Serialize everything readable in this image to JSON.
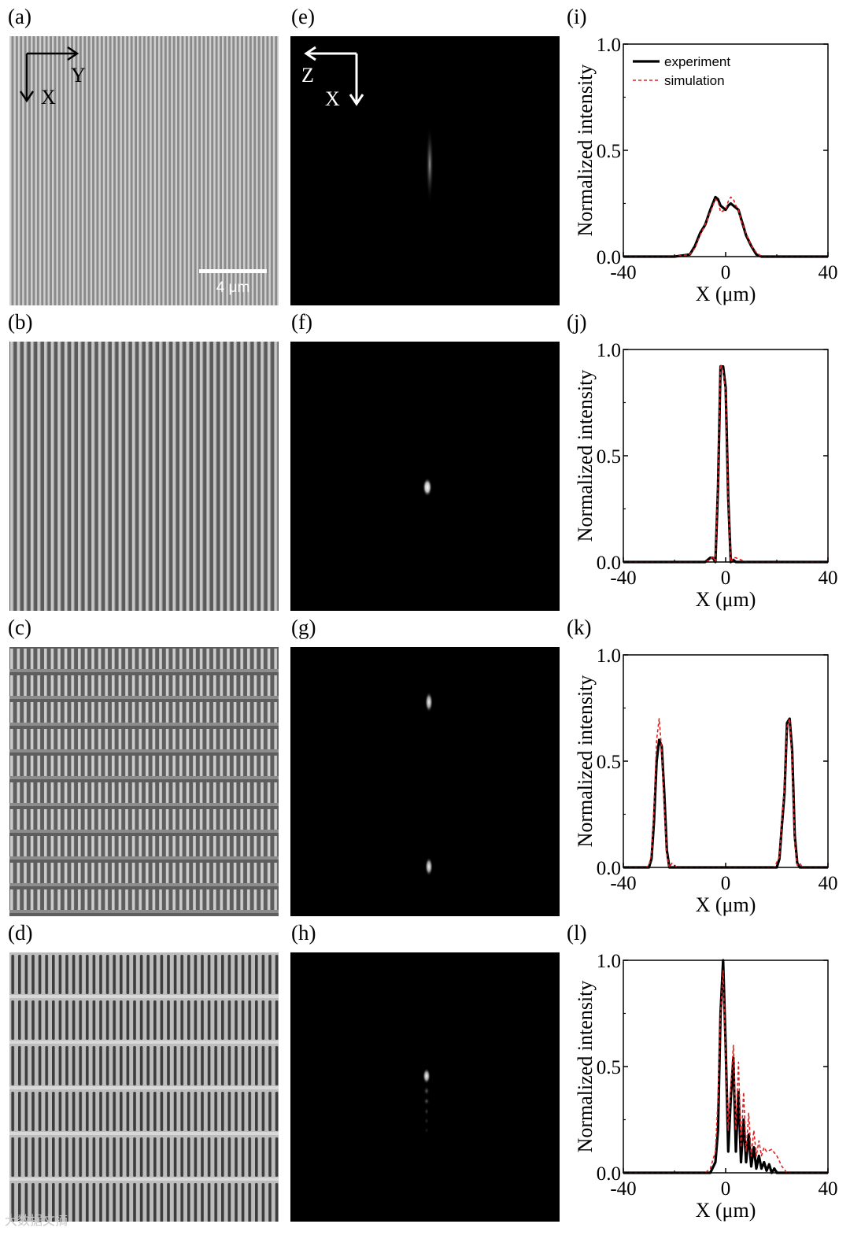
{
  "panels": {
    "labels": [
      "(a)",
      "(b)",
      "(c)",
      "(d)",
      "(e)",
      "(f)",
      "(g)",
      "(h)",
      "(i)",
      "(j)",
      "(k)",
      "(l)"
    ]
  },
  "sem": {
    "scale_bar_label": "4 μm",
    "axis_arrows": {
      "right": "Y",
      "down": "X"
    }
  },
  "focal": {
    "axis_arrows": {
      "left": "Z",
      "down": "X"
    }
  },
  "watermark": "大数据文摘",
  "colors": {
    "experiment": "#000000",
    "simulation": "#e02020",
    "background": "#000000"
  },
  "chart_data": [
    {
      "panel": "(i)",
      "type": "line",
      "xlabel": "X (μm)",
      "ylabel": "Normalized intensity",
      "xlim": [
        -40,
        40
      ],
      "ylim": [
        0,
        1
      ],
      "xticks": [
        "-40",
        "0",
        "40"
      ],
      "yticks": [
        "0.0",
        "0.5",
        "1.0"
      ],
      "legend": {
        "position": "top-left",
        "entries": [
          "experiment",
          "simulation"
        ]
      },
      "series": [
        {
          "name": "experiment",
          "style": "solid",
          "x": [
            -40,
            -20,
            -14,
            -12,
            -10,
            -8,
            -6,
            -4,
            -3,
            -2,
            0,
            1,
            2,
            3,
            4,
            5,
            6,
            8,
            10,
            12,
            14,
            20,
            40
          ],
          "y": [
            0.0,
            0.0,
            0.01,
            0.05,
            0.11,
            0.15,
            0.22,
            0.28,
            0.27,
            0.24,
            0.22,
            0.24,
            0.25,
            0.24,
            0.23,
            0.22,
            0.18,
            0.1,
            0.05,
            0.01,
            0.0,
            0.0,
            0.0
          ]
        },
        {
          "name": "simulation",
          "style": "dashed",
          "x": [
            -40,
            -20,
            -14,
            -12,
            -10,
            -8,
            -6,
            -4,
            -3,
            -2,
            0,
            1,
            2,
            3,
            4,
            5,
            6,
            8,
            10,
            12,
            14,
            20,
            40
          ],
          "y": [
            0.0,
            0.0,
            0.01,
            0.04,
            0.1,
            0.15,
            0.21,
            0.27,
            0.26,
            0.21,
            0.22,
            0.26,
            0.28,
            0.27,
            0.24,
            0.22,
            0.17,
            0.11,
            0.05,
            0.02,
            0.0,
            0.0,
            0.0
          ]
        }
      ]
    },
    {
      "panel": "(j)",
      "type": "line",
      "xlabel": "X (μm)",
      "ylabel": "Normalized intensity",
      "xlim": [
        -40,
        40
      ],
      "ylim": [
        0,
        1
      ],
      "xticks": [
        "-40",
        "0",
        "40"
      ],
      "yticks": [
        "0.0",
        "0.5",
        "1.0"
      ],
      "series": [
        {
          "name": "experiment",
          "style": "solid",
          "x": [
            -40,
            -8,
            -6,
            -5,
            -4,
            -3,
            -2,
            -1,
            0,
            1,
            2,
            3,
            4,
            6,
            40
          ],
          "y": [
            0.0,
            0.0,
            0.02,
            0.02,
            0.0,
            0.35,
            0.92,
            0.92,
            0.82,
            0.3,
            0.0,
            0.01,
            0.0,
            0.0,
            0.0
          ]
        },
        {
          "name": "simulation",
          "style": "dashed",
          "x": [
            -40,
            -8,
            -6,
            -5,
            -4,
            -3,
            -2,
            -1,
            0,
            1,
            2,
            3,
            4,
            6,
            8,
            40
          ],
          "y": [
            0.0,
            0.0,
            0.01,
            0.03,
            0.0,
            0.38,
            0.93,
            0.9,
            0.8,
            0.28,
            0.0,
            0.02,
            0.02,
            0.01,
            0.0,
            0.0
          ]
        }
      ]
    },
    {
      "panel": "(k)",
      "type": "line",
      "xlabel": "X (μm)",
      "ylabel": "Normalized intensity",
      "xlim": [
        -40,
        40
      ],
      "ylim": [
        0,
        1
      ],
      "xticks": [
        "-40",
        "0",
        "40"
      ],
      "yticks": [
        "0.0",
        "0.5",
        "1.0"
      ],
      "series": [
        {
          "name": "experiment",
          "style": "solid",
          "x": [
            -40,
            -30,
            -29,
            -28,
            -27,
            -26,
            -25,
            -24,
            -23,
            -22,
            -20,
            0,
            20,
            21,
            22,
            23,
            24,
            25,
            26,
            27,
            28,
            29,
            40
          ],
          "y": [
            0.0,
            0.0,
            0.04,
            0.22,
            0.5,
            0.6,
            0.57,
            0.35,
            0.08,
            0.0,
            0.0,
            0.0,
            0.0,
            0.04,
            0.2,
            0.35,
            0.68,
            0.7,
            0.55,
            0.15,
            0.02,
            0.0,
            0.0
          ]
        },
        {
          "name": "simulation",
          "style": "dashed",
          "x": [
            -40,
            -31,
            -30,
            -29,
            -28,
            -27,
            -26,
            -25,
            -24,
            -23,
            -22,
            -21,
            -19,
            0,
            19,
            21,
            22,
            23,
            24,
            25,
            26,
            27,
            28,
            29,
            30,
            40
          ],
          "y": [
            0.0,
            0.0,
            0.01,
            0.06,
            0.28,
            0.6,
            0.7,
            0.55,
            0.28,
            0.06,
            0.0,
            0.02,
            0.0,
            0.0,
            0.0,
            0.05,
            0.22,
            0.38,
            0.66,
            0.7,
            0.5,
            0.12,
            0.01,
            0.02,
            0.0,
            0.0
          ]
        }
      ]
    },
    {
      "panel": "(l)",
      "type": "line",
      "xlabel": "X (μm)",
      "ylabel": "Normalized intensity",
      "xlim": [
        -40,
        40
      ],
      "ylim": [
        0,
        1
      ],
      "xticks": [
        "-40",
        "0",
        "40"
      ],
      "yticks": [
        "0.0",
        "0.5",
        "1.0"
      ],
      "series": [
        {
          "name": "experiment",
          "style": "solid",
          "x": [
            -40,
            -6,
            -4,
            -3,
            -2,
            -1,
            0,
            1,
            2,
            3,
            4,
            5,
            6,
            7,
            8,
            9,
            10,
            11,
            12,
            13,
            14,
            15,
            16,
            17,
            18,
            19,
            20,
            40
          ],
          "y": [
            0.0,
            0.0,
            0.05,
            0.2,
            0.75,
            1.0,
            0.6,
            0.1,
            0.35,
            0.54,
            0.1,
            0.38,
            0.05,
            0.25,
            0.05,
            0.18,
            0.03,
            0.12,
            0.02,
            0.08,
            0.02,
            0.05,
            0.01,
            0.04,
            0.0,
            0.02,
            0.0,
            0.0
          ]
        },
        {
          "name": "simulation",
          "style": "dashed",
          "x": [
            -40,
            -8,
            -6,
            -4,
            -3,
            -2,
            -1,
            0,
            1,
            2,
            3,
            4,
            5,
            6,
            7,
            8,
            9,
            10,
            11,
            12,
            13,
            14,
            15,
            16,
            18,
            20,
            22,
            24,
            40
          ],
          "y": [
            0.0,
            0.0,
            0.02,
            0.1,
            0.35,
            0.75,
            0.95,
            0.55,
            0.2,
            0.4,
            0.6,
            0.2,
            0.52,
            0.12,
            0.38,
            0.1,
            0.28,
            0.08,
            0.2,
            0.08,
            0.15,
            0.08,
            0.12,
            0.1,
            0.11,
            0.08,
            0.03,
            0.0,
            0.0
          ]
        }
      ]
    }
  ]
}
